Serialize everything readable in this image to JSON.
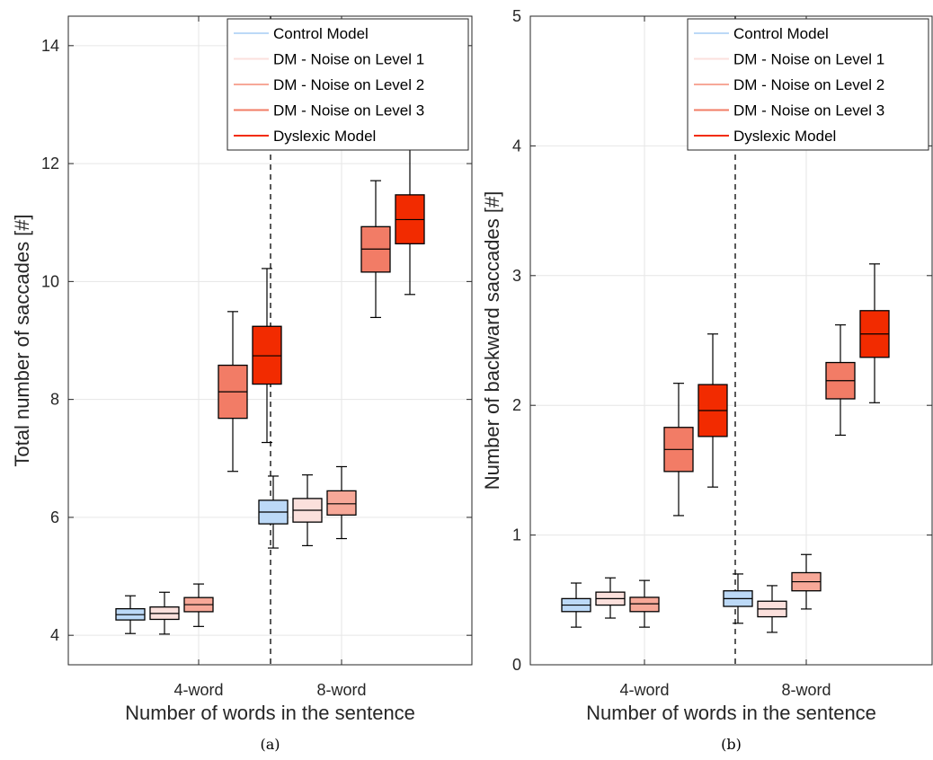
{
  "chart_data": [
    {
      "type": "box",
      "panel_caption": "(a)",
      "xlabel": "Number of words in the sentence",
      "ylabel": "Total number of saccades [#]",
      "ylim": [
        3.5,
        14.5
      ],
      "yticks": [
        4,
        6,
        8,
        10,
        12,
        14
      ],
      "categories": [
        "4-word",
        "8-word"
      ],
      "grid": true,
      "legend_position": "top-right",
      "divider_between_groups": true,
      "series": [
        {
          "name": "Control Model",
          "color": "#bcd9f7",
          "boxes": [
            {
              "category": "4-word",
              "whisker_low": 4.03,
              "q1": 4.26,
              "median": 4.35,
              "q3": 4.45,
              "whisker_high": 4.67
            },
            {
              "category": "8-word",
              "whisker_low": 5.48,
              "q1": 5.89,
              "median": 6.09,
              "q3": 6.29,
              "whisker_high": 6.7
            }
          ]
        },
        {
          "name": "DM - Noise on Level 1",
          "color": "#fbe0dc",
          "boxes": [
            {
              "category": "4-word",
              "whisker_low": 4.02,
              "q1": 4.27,
              "median": 4.37,
              "q3": 4.48,
              "whisker_high": 4.73
            },
            {
              "category": "8-word",
              "whisker_low": 5.52,
              "q1": 5.92,
              "median": 6.12,
              "q3": 6.32,
              "whisker_high": 6.72
            }
          ]
        },
        {
          "name": "DM - Noise on Level 2",
          "color": "#f7a898",
          "boxes": [
            {
              "category": "4-word",
              "whisker_low": 4.15,
              "q1": 4.4,
              "median": 4.52,
              "q3": 4.64,
              "whisker_high": 4.87
            },
            {
              "category": "8-word",
              "whisker_low": 5.64,
              "q1": 6.04,
              "median": 6.23,
              "q3": 6.45,
              "whisker_high": 6.86
            }
          ]
        },
        {
          "name": "DM - Noise on Level 3",
          "color": "#f27c66",
          "boxes": [
            {
              "category": "4-word",
              "whisker_low": 6.78,
              "q1": 7.68,
              "median": 8.13,
              "q3": 8.58,
              "whisker_high": 9.49
            },
            {
              "category": "8-word",
              "whisker_low": 9.39,
              "q1": 10.16,
              "median": 10.55,
              "q3": 10.93,
              "whisker_high": 11.71
            }
          ]
        },
        {
          "name": "Dyslexic Model",
          "color": "#f22b00",
          "boxes": [
            {
              "category": "4-word",
              "whisker_low": 7.27,
              "q1": 8.26,
              "median": 8.74,
              "q3": 9.24,
              "whisker_high": 10.22
            },
            {
              "category": "8-word",
              "whisker_low": 9.78,
              "q1": 10.64,
              "median": 11.05,
              "q3": 11.47,
              "whisker_high": 12.32
            }
          ]
        }
      ]
    },
    {
      "type": "box",
      "panel_caption": "(b)",
      "xlabel": "Number of words in the sentence",
      "ylabel": "Number of backward saccades [#]",
      "ylim": [
        0,
        5
      ],
      "yticks": [
        0,
        1,
        2,
        3,
        4,
        5
      ],
      "categories": [
        "4-word",
        "8-word"
      ],
      "grid": true,
      "legend_position": "top-right",
      "divider_between_groups": true,
      "series": [
        {
          "name": "Control Model",
          "color": "#bcd9f7",
          "boxes": [
            {
              "category": "4-word",
              "whisker_low": 0.29,
              "q1": 0.41,
              "median": 0.46,
              "q3": 0.51,
              "whisker_high": 0.63
            },
            {
              "category": "8-word",
              "whisker_low": 0.32,
              "q1": 0.45,
              "median": 0.51,
              "q3": 0.57,
              "whisker_high": 0.7
            }
          ]
        },
        {
          "name": "DM - Noise on Level 1",
          "color": "#fbe0dc",
          "boxes": [
            {
              "category": "4-word",
              "whisker_low": 0.36,
              "q1": 0.46,
              "median": 0.51,
              "q3": 0.56,
              "whisker_high": 0.67
            },
            {
              "category": "8-word",
              "whisker_low": 0.25,
              "q1": 0.37,
              "median": 0.43,
              "q3": 0.49,
              "whisker_high": 0.61
            }
          ]
        },
        {
          "name": "DM - Noise on Level 2",
          "color": "#f7a898",
          "boxes": [
            {
              "category": "4-word",
              "whisker_low": 0.29,
              "q1": 0.41,
              "median": 0.47,
              "q3": 0.52,
              "whisker_high": 0.65
            },
            {
              "category": "8-word",
              "whisker_low": 0.43,
              "q1": 0.57,
              "median": 0.64,
              "q3": 0.71,
              "whisker_high": 0.85
            }
          ]
        },
        {
          "name": "DM - Noise on Level 3",
          "color": "#f27c66",
          "boxes": [
            {
              "category": "4-word",
              "whisker_low": 1.15,
              "q1": 1.49,
              "median": 1.66,
              "q3": 1.83,
              "whisker_high": 2.17
            },
            {
              "category": "8-word",
              "whisker_low": 1.77,
              "q1": 2.05,
              "median": 2.19,
              "q3": 2.33,
              "whisker_high": 2.62
            }
          ]
        },
        {
          "name": "Dyslexic Model",
          "color": "#f22b00",
          "boxes": [
            {
              "category": "4-word",
              "whisker_low": 1.37,
              "q1": 1.76,
              "median": 1.96,
              "q3": 2.16,
              "whisker_high": 2.55
            },
            {
              "category": "8-word",
              "whisker_low": 2.02,
              "q1": 2.37,
              "median": 2.55,
              "q3": 2.73,
              "whisker_high": 3.09
            }
          ]
        }
      ]
    }
  ]
}
